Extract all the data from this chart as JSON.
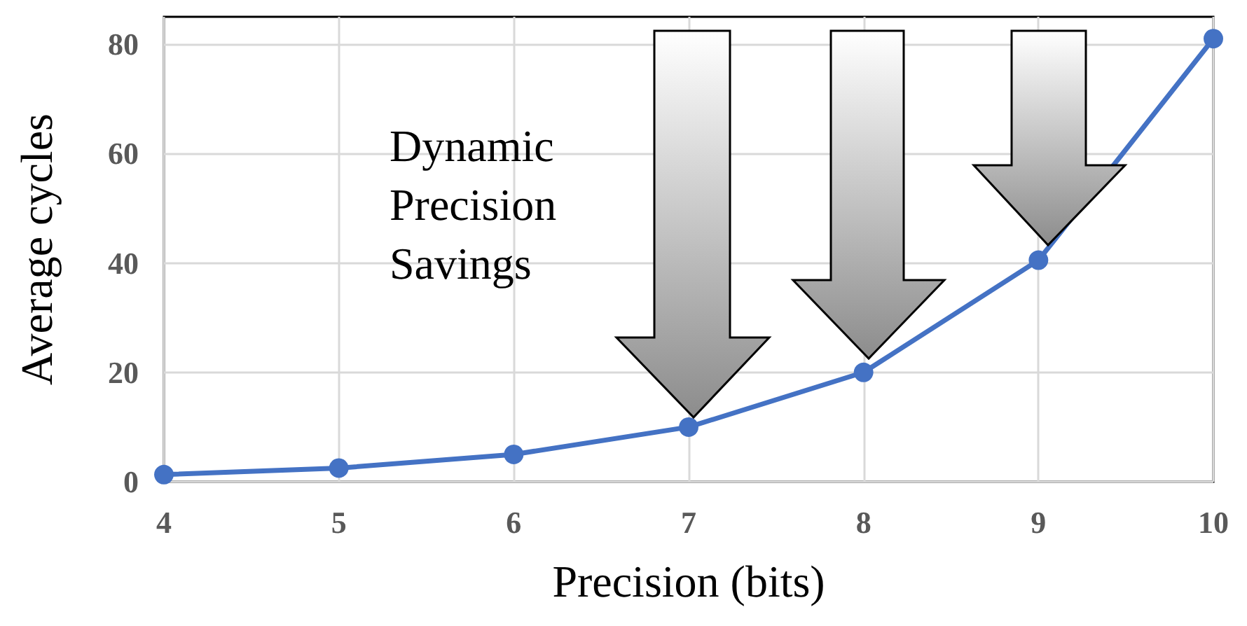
{
  "chart_data": {
    "type": "line",
    "xlabel": "Precision (bits)",
    "ylabel": "Average cycles",
    "x": [
      4,
      5,
      6,
      7,
      8,
      9,
      10
    ],
    "series": [
      {
        "color": "#4472c4",
        "values": [
          1.3,
          2.5,
          5,
          10,
          20,
          40.5,
          81
        ]
      }
    ],
    "xlim": [
      4,
      10
    ],
    "xticks": [
      4,
      5,
      6,
      7,
      8,
      9,
      10
    ],
    "ylim": [
      0,
      85
    ],
    "yticks": [
      0,
      20,
      40,
      60,
      80
    ],
    "grid": true,
    "marker": "circle",
    "line_style": "solid",
    "annotations": [
      "Dynamic\nPrecision\nSavings"
    ]
  }
}
